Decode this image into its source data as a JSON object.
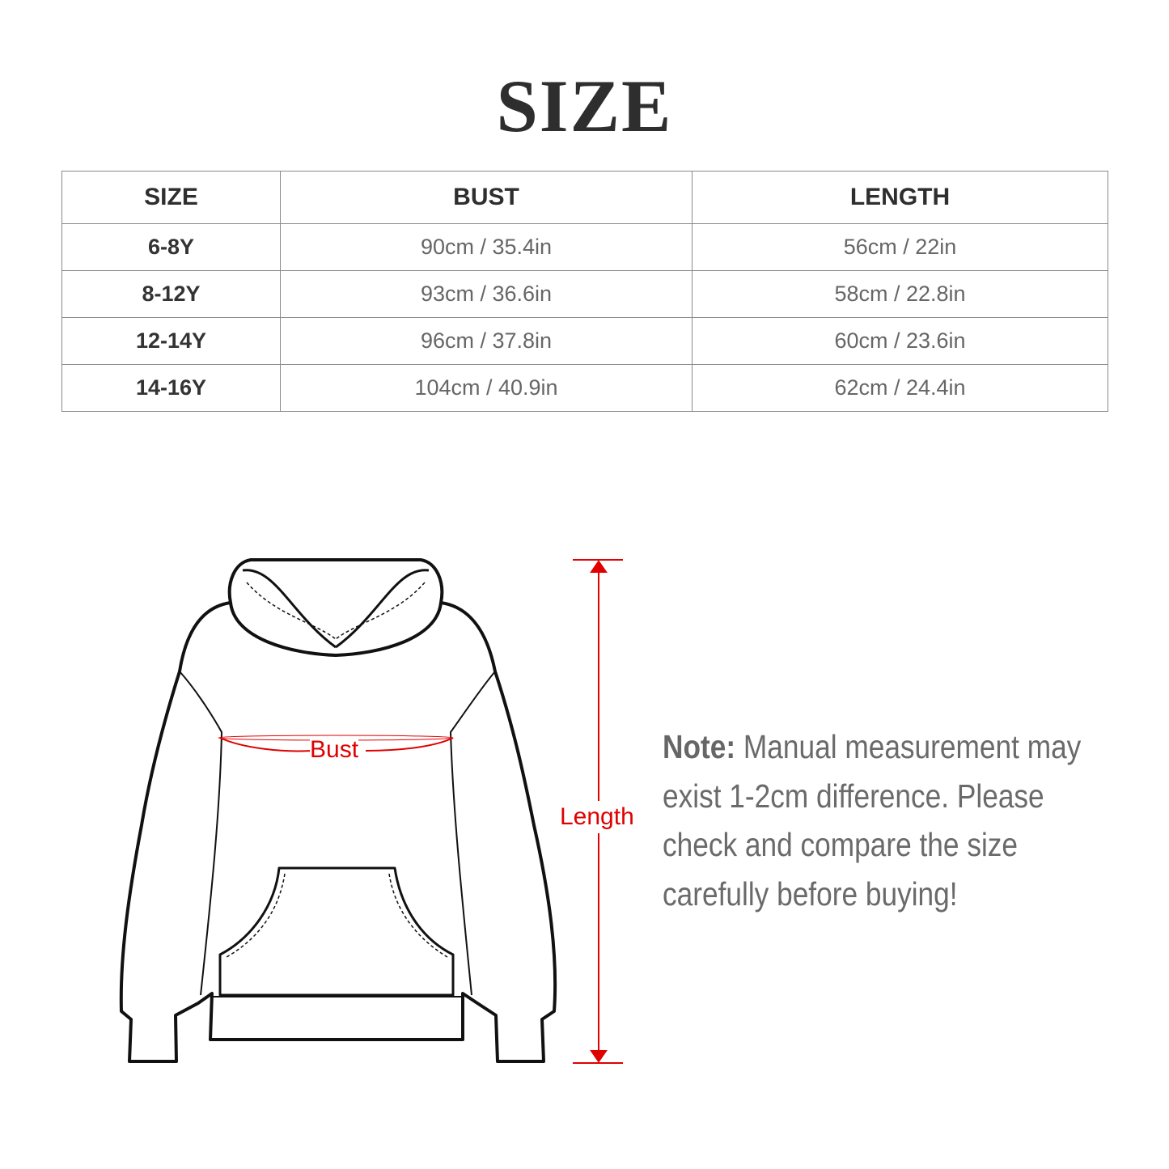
{
  "title": "SIZE",
  "table": {
    "headers": [
      "SIZE",
      "BUST",
      "LENGTH"
    ],
    "rows": [
      {
        "size": "6-8Y",
        "bust": "90cm / 35.4in",
        "length": "56cm / 22in"
      },
      {
        "size": "8-12Y",
        "bust": "93cm / 36.6in",
        "length": "58cm / 22.8in"
      },
      {
        "size": "12-14Y",
        "bust": "96cm / 37.8in",
        "length": "60cm / 23.6in"
      },
      {
        "size": "14-16Y",
        "bust": "104cm / 40.9in",
        "length": "62cm / 24.4in"
      }
    ]
  },
  "diagram": {
    "bust_label": "Bust",
    "length_label": "Length",
    "measure_color": "#e00000"
  },
  "note": {
    "prefix": "Note:",
    "text": " Manual measurement may exist 1-2cm difference. Please check and compare the size carefully before buying!"
  }
}
